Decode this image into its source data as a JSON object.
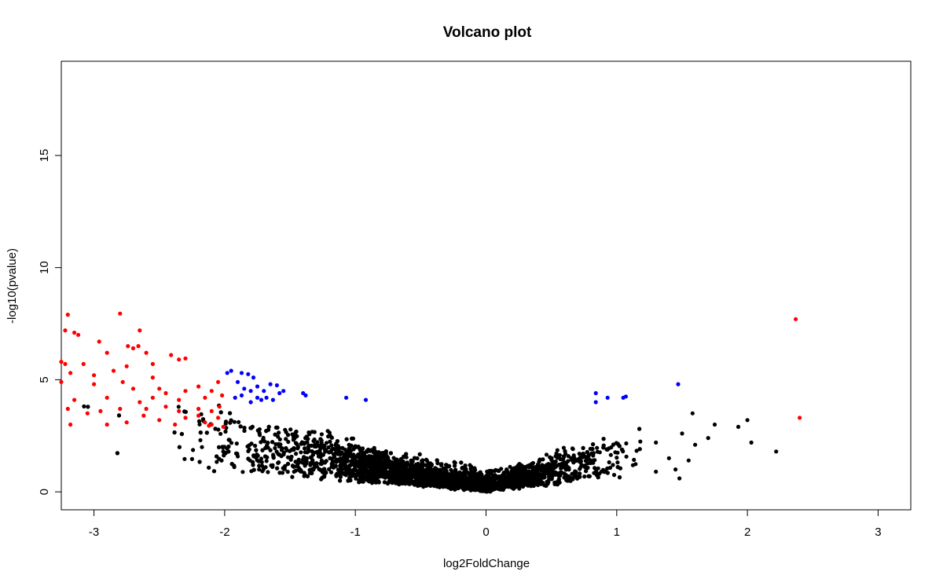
{
  "chart_data": {
    "type": "scatter",
    "title": "Volcano plot",
    "xlabel": "log2FoldChange",
    "ylabel": "-log10(pvalue)",
    "xlim": [
      -3.25,
      3.25
    ],
    "ylim": [
      -0.8,
      19.2
    ],
    "xticks": [
      -3,
      -2,
      -1,
      0,
      1,
      2,
      3
    ],
    "yticks": [
      0,
      5,
      10,
      15
    ],
    "grid": false,
    "legend": "none",
    "point_groups": [
      {
        "color": "#ff0000",
        "points": [
          [
            -3.2,
            7.9
          ],
          [
            -2.8,
            7.95
          ],
          [
            -3.22,
            7.2
          ],
          [
            -3.15,
            7.1
          ],
          [
            -3.12,
            7.0
          ],
          [
            -2.65,
            7.2
          ],
          [
            -2.66,
            6.5
          ],
          [
            -2.96,
            6.7
          ],
          [
            -2.9,
            6.2
          ],
          [
            -2.74,
            6.5
          ],
          [
            -2.7,
            6.4
          ],
          [
            -2.6,
            6.2
          ],
          [
            -2.41,
            6.1
          ],
          [
            -3.25,
            5.8
          ],
          [
            -3.22,
            5.7
          ],
          [
            -3.08,
            5.7
          ],
          [
            -2.55,
            5.7
          ],
          [
            -2.35,
            5.9
          ],
          [
            -2.3,
            5.95
          ],
          [
            -3.18,
            5.3
          ],
          [
            -3.0,
            5.2
          ],
          [
            -2.85,
            5.4
          ],
          [
            -2.75,
            5.6
          ],
          [
            -2.55,
            5.1
          ],
          [
            -3.25,
            4.9
          ],
          [
            -3.0,
            4.8
          ],
          [
            -2.78,
            4.9
          ],
          [
            -2.7,
            4.6
          ],
          [
            -2.5,
            4.6
          ],
          [
            -2.45,
            4.4
          ],
          [
            -2.3,
            4.5
          ],
          [
            -2.2,
            4.7
          ],
          [
            -2.1,
            4.5
          ],
          [
            -2.05,
            4.9
          ],
          [
            -3.15,
            4.1
          ],
          [
            -2.9,
            4.2
          ],
          [
            -2.65,
            4.0
          ],
          [
            -2.55,
            4.2
          ],
          [
            -2.35,
            4.1
          ],
          [
            -2.15,
            4.2
          ],
          [
            -2.02,
            4.3
          ],
          [
            -3.2,
            3.7
          ],
          [
            -3.05,
            3.5
          ],
          [
            -2.95,
            3.6
          ],
          [
            -2.8,
            3.7
          ],
          [
            -2.6,
            3.7
          ],
          [
            -2.45,
            3.8
          ],
          [
            -2.35,
            3.6
          ],
          [
            -2.2,
            3.7
          ],
          [
            -2.1,
            3.6
          ],
          [
            -2.04,
            3.8
          ],
          [
            -2.2,
            3.4
          ],
          [
            -2.3,
            3.3
          ],
          [
            -2.5,
            3.2
          ],
          [
            -2.05,
            3.3
          ],
          [
            -2.15,
            3.1
          ],
          [
            -2.1,
            3.0
          ],
          [
            -2.38,
            3.0
          ],
          [
            -2.9,
            3.0
          ],
          [
            -3.18,
            3.0
          ],
          [
            -2.01,
            2.9
          ],
          [
            -2.62,
            3.4
          ],
          [
            -2.75,
            3.1
          ],
          [
            -2.12,
            2.95
          ],
          [
            2.37,
            7.7
          ],
          [
            2.4,
            3.3
          ]
        ]
      },
      {
        "color": "#0000ff",
        "points": [
          [
            -1.95,
            5.4
          ],
          [
            -1.98,
            5.3
          ],
          [
            -1.87,
            5.3
          ],
          [
            -1.82,
            5.25
          ],
          [
            -1.78,
            5.1
          ],
          [
            -1.9,
            4.9
          ],
          [
            -1.85,
            4.6
          ],
          [
            -1.8,
            4.5
          ],
          [
            -1.75,
            4.7
          ],
          [
            -1.7,
            4.5
          ],
          [
            -1.65,
            4.8
          ],
          [
            -1.6,
            4.75
          ],
          [
            -1.55,
            4.5
          ],
          [
            -1.75,
            4.2
          ],
          [
            -1.8,
            4.0
          ],
          [
            -1.68,
            4.2
          ],
          [
            -1.63,
            4.1
          ],
          [
            -1.58,
            4.4
          ],
          [
            -1.4,
            4.4
          ],
          [
            -1.38,
            4.3
          ],
          [
            -1.92,
            4.2
          ],
          [
            -1.87,
            4.3
          ],
          [
            -1.07,
            4.2
          ],
          [
            -0.92,
            4.1
          ],
          [
            -1.72,
            4.1
          ],
          [
            0.84,
            4.4
          ],
          [
            0.93,
            4.2
          ],
          [
            0.84,
            4.0
          ],
          [
            1.05,
            4.2
          ],
          [
            1.07,
            4.25
          ],
          [
            1.47,
            4.8
          ]
        ]
      }
    ],
    "background_series": {
      "color": "#000000",
      "description_note_excluded": true,
      "approx_count": 4200
    }
  }
}
